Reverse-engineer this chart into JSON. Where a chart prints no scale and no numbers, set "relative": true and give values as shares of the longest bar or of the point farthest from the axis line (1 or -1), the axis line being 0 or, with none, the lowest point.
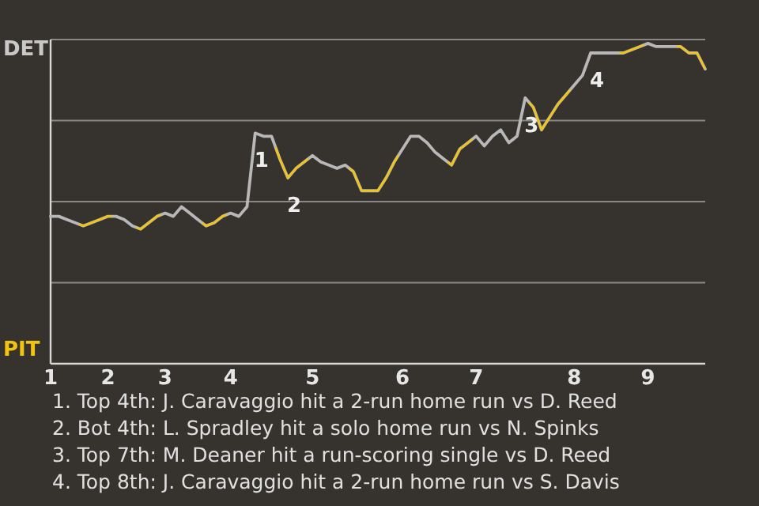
{
  "chart_data": {
    "type": "line",
    "relative": true,
    "categories": [
      "1",
      null,
      null,
      null,
      null,
      null,
      null,
      "2",
      null,
      null,
      null,
      null,
      null,
      null,
      "3",
      null,
      null,
      null,
      null,
      null,
      null,
      null,
      "4",
      null,
      null,
      null,
      null,
      null,
      null,
      null,
      null,
      null,
      "5",
      null,
      null,
      null,
      null,
      null,
      null,
      null,
      null,
      null,
      null,
      "6",
      null,
      null,
      null,
      null,
      null,
      null,
      null,
      null,
      "7",
      null,
      null,
      null,
      null,
      null,
      null,
      null,
      null,
      null,
      null,
      null,
      "8",
      null,
      null,
      null,
      null,
      null,
      null,
      null,
      null,
      "9",
      null,
      null,
      null,
      null,
      null,
      null,
      null
    ],
    "grid": "y",
    "marker": "none",
    "line_style": "solid",
    "series": [
      {
        "color": "#b8b8b8",
        "values": [
          0.46,
          0.46,
          0.45,
          0.44,
          0.43,
          0.44,
          0.45,
          0.46,
          0.46,
          0.45,
          0.43,
          0.42,
          0.44,
          0.46,
          0.47,
          0.46,
          0.49,
          0.47,
          0.45,
          0.43,
          0.44,
          0.46,
          0.47,
          0.46,
          0.49,
          0.72,
          0.71,
          0.71,
          0.64,
          0.58,
          0.61,
          0.63,
          0.65,
          0.63,
          0.62,
          0.61,
          0.62,
          0.6,
          0.54,
          0.54,
          0.54,
          0.58,
          0.63,
          0.67,
          0.71,
          0.71,
          0.69,
          0.66,
          0.64,
          0.62,
          0.67,
          0.69,
          0.71,
          0.68,
          0.71,
          0.73,
          0.69,
          0.71,
          0.83,
          0.8,
          0.73,
          0.77,
          0.81,
          0.84,
          0.87,
          0.9,
          0.97,
          0.97,
          0.97,
          0.97,
          0.97,
          0.98,
          0.99,
          1,
          0.99,
          0.99,
          0.99,
          0.99,
          0.97,
          0.97,
          0.92
        ],
        "colors": [
          "#b8b8b8",
          "#b8b8b8",
          "#b8b8b8",
          "#b8b8b8",
          "#f2c40f",
          "#f2c40f",
          "#f2c40f",
          "#f2c40f",
          "#b8b8b8",
          "#b8b8b8",
          "#b8b8b8",
          "#f2c40f",
          "#f2c40f",
          "#f2c40f",
          "#b8b8b8",
          "#b8b8b8",
          "#b8b8b8",
          "#b8b8b8",
          "#b8b8b8",
          "#f2c40f",
          "#f2c40f",
          "#f2c40f",
          "#b8b8b8",
          "#b8b8b8",
          "#b8b8b8",
          "#b8b8b8",
          "#b8b8b8",
          "#b8b8b8",
          "#f2c40f",
          "#f2c40f",
          "#f2c40f",
          "#f2c40f",
          "#b8b8b8",
          "#b8b8b8",
          "#b8b8b8",
          "#b8b8b8",
          "#b8b8b8",
          "#f2c40f",
          "#f2c40f",
          "#f2c40f",
          "#f2c40f",
          "#f2c40f",
          "#f2c40f",
          "#b8b8b8",
          "#b8b8b8",
          "#b8b8b8",
          "#b8b8b8",
          "#b8b8b8",
          "#b8b8b8",
          "#f2c40f",
          "#f2c40f",
          "#f2c40f",
          "#b8b8b8",
          "#b8b8b8",
          "#b8b8b8",
          "#b8b8b8",
          "#b8b8b8",
          "#b8b8b8",
          "#b8b8b8",
          "#f2c40f",
          "#f2c40f",
          "#f2c40f",
          "#f2c40f",
          "#f2c40f",
          "#b8b8b8",
          "#b8b8b8",
          "#b8b8b8",
          "#b8b8b8",
          "#b8b8b8",
          "#b8b8b8",
          "#f2c40f",
          "#f2c40f",
          "#f2c40f",
          "#b8b8b8",
          "#b8b8b8",
          "#b8b8b8",
          "#b8b8b8",
          "#f2c40f",
          "#f2c40f",
          "#f2c40f",
          "#f2c40f"
        ]
      }
    ],
    "annotations": [
      "DET",
      "PIT",
      {
        "text": "1",
        "y": 0.72
      },
      {
        "text": "2",
        "y": 0.58
      },
      {
        "text": "3",
        "y": 0.83
      },
      {
        "text": "4",
        "y": 0.97
      },
      "1. Top 4th: J. Caravaggio hit a 2-run home run vs D. Reed",
      "2. Bot 4th: L. Spradley hit a solo home run vs N. Spinks",
      "3. Top 7th: M. Deaner hit a run-scoring single vs D. Reed",
      "4. Top 8th: J. Caravaggio hit a 2-run home run vs S. Davis"
    ]
  }
}
